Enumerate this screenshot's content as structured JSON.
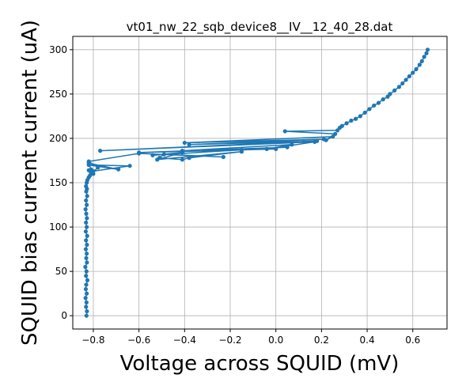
{
  "chart_data": {
    "type": "scatter",
    "title": "vt01_nw_22_sqb_device8__IV__12_40_28.dat",
    "xlabel": "Voltage across SQUID (mV)",
    "ylabel": "SQUID bias current current (uA)",
    "xlim": [
      -0.89,
      0.75
    ],
    "ylim": [
      -15,
      315
    ],
    "grid": true,
    "legend": "none",
    "x_ticks": [
      -0.8,
      -0.6,
      -0.4,
      -0.2,
      0.0,
      0.2,
      0.4,
      0.6
    ],
    "x_tick_labels": [
      "−0.8",
      "−0.6",
      "−0.4",
      "−0.2",
      "0.0",
      "0.2",
      "0.4",
      "0.6"
    ],
    "y_ticks": [
      0,
      50,
      100,
      150,
      200,
      250,
      300
    ],
    "y_tick_labels": [
      "0",
      "50",
      "100",
      "150",
      "200",
      "250",
      "300"
    ],
    "series": [
      {
        "color": "#1f77b4",
        "marker": "circle",
        "line": true,
        "x": [
          -0.83,
          -0.828,
          -0.832,
          -0.83,
          -0.834,
          -0.829,
          -0.833,
          -0.831,
          -0.826,
          -0.832,
          -0.83,
          -0.835,
          -0.828,
          -0.831,
          -0.829,
          -0.833,
          -0.828,
          -0.832,
          -0.827,
          -0.833,
          -0.829,
          -0.832,
          -0.828,
          -0.831,
          -0.834,
          -0.829,
          -0.832,
          -0.827,
          -0.831,
          -0.828,
          -0.832,
          -0.829,
          -0.826,
          -0.82,
          -0.815,
          -0.81,
          -0.8,
          -0.82,
          -0.81,
          -0.82,
          -0.69,
          -0.82,
          -0.64,
          -0.8,
          -0.81,
          -0.78,
          -0.82,
          -0.6,
          -0.23,
          -0.49,
          -0.51,
          -0.41,
          -0.38,
          -0.15,
          -0.52,
          -0.41,
          -0.54,
          -0.15,
          0.0,
          -0.6,
          0.05,
          -0.41,
          0.07,
          -0.04,
          0.17,
          -0.77,
          0.18,
          -0.38,
          0.21,
          -0.4,
          0.25,
          0.22,
          0.26,
          0.04,
          0.27,
          0.28,
          0.29,
          0.31,
          0.33,
          0.35,
          0.37,
          0.39,
          0.41,
          0.43,
          0.45,
          0.47,
          0.49,
          0.5,
          0.52,
          0.54,
          0.555,
          0.57,
          0.585,
          0.6,
          0.615,
          0.63,
          0.64,
          0.65,
          0.66,
          0.665
        ],
        "y": [
          0,
          5,
          10,
          15,
          20,
          25,
          30,
          35,
          40,
          45,
          50,
          55,
          60,
          65,
          70,
          75,
          80,
          85,
          90,
          95,
          100,
          105,
          110,
          115,
          120,
          125,
          130,
          135,
          140,
          143,
          146,
          150,
          153,
          156,
          158,
          161,
          160,
          164,
          165,
          172,
          165,
          170,
          169,
          163,
          160,
          167,
          174,
          183,
          179,
          182,
          178,
          176,
          178,
          185,
          176,
          184,
          181,
          187,
          188,
          184,
          190,
          186,
          193,
          188,
          196,
          186,
          197,
          193,
          199,
          195,
          202,
          198,
          205,
          208,
          209,
          212,
          214,
          217,
          220,
          222,
          225,
          229,
          233,
          237,
          240,
          244,
          247,
          250,
          254,
          258,
          262,
          266,
          270,
          274,
          278,
          283,
          287,
          292,
          296,
          300
        ]
      }
    ]
  }
}
